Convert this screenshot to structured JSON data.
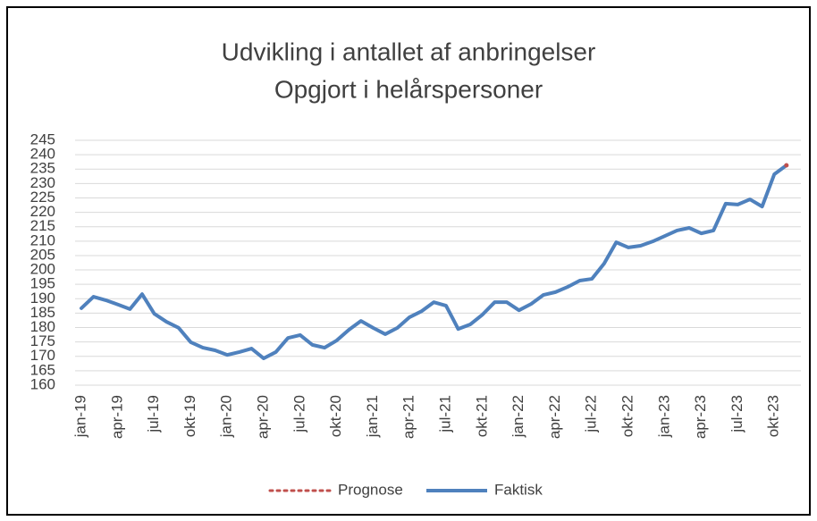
{
  "chart_data": {
    "type": "line",
    "title": "Udvikling i antallet af anbringelser",
    "subtitle": "Opgjort i helårspersoner",
    "categories": [
      "jan-19",
      null,
      null,
      "apr-19",
      null,
      null,
      "jul-19",
      null,
      null,
      "okt-19",
      null,
      null,
      "jan-20",
      null,
      null,
      "apr-20",
      null,
      null,
      "jul-20",
      null,
      null,
      "okt-20",
      null,
      null,
      "jan-21",
      null,
      null,
      "apr-21",
      null,
      null,
      "jul-21",
      null,
      null,
      "okt-21",
      null,
      null,
      "jan-22",
      null,
      null,
      "apr-22",
      null,
      null,
      "jul-22",
      null,
      null,
      "okt-22",
      null,
      null,
      "jan-23",
      null,
      null,
      "apr-23",
      null,
      null,
      "jul-23",
      null,
      null,
      "okt-23",
      null
    ],
    "series": [
      {
        "name": "Prognose",
        "color": "#c0504d",
        "style": "dotted",
        "values": [
          null,
          null,
          null,
          null,
          null,
          null,
          null,
          null,
          null,
          null,
          null,
          null,
          null,
          null,
          null,
          null,
          null,
          null,
          null,
          null,
          null,
          null,
          null,
          null,
          null,
          null,
          null,
          null,
          null,
          null,
          null,
          null,
          null,
          null,
          null,
          null,
          null,
          null,
          null,
          null,
          null,
          null,
          null,
          null,
          null,
          null,
          null,
          null,
          null,
          null,
          null,
          null,
          null,
          null,
          null,
          null,
          null,
          null,
          236.3
        ]
      },
      {
        "name": "Faktisk",
        "color": "#4f81bd",
        "style": "solid",
        "values": [
          186.7,
          190.7,
          189.5,
          188,
          186.4,
          191.6,
          184.8,
          182,
          179.9,
          174.9,
          173,
          172.1,
          170.5,
          171.5,
          172.7,
          169.3,
          171.5,
          176.4,
          177.4,
          174,
          173,
          175.5,
          179.2,
          182.3,
          179.9,
          177.7,
          179.9,
          183.6,
          185.7,
          188.8,
          187.6,
          179.5,
          181.1,
          184.5,
          188.8,
          188.8,
          186,
          188.2,
          191.3,
          192.3,
          194.1,
          196.3,
          196.9,
          202.2,
          209.6,
          207.8,
          208.4,
          209.9,
          211.8,
          213.7,
          214.6,
          212.7,
          213.7,
          223,
          222.7,
          224.5,
          222,
          233.2,
          236.3
        ]
      }
    ],
    "ylim": [
      160,
      245
    ],
    "yticks": [
      160,
      165,
      170,
      175,
      180,
      185,
      190,
      195,
      200,
      205,
      210,
      215,
      220,
      225,
      230,
      235,
      240,
      245
    ],
    "grid": true,
    "legend": "bottom"
  }
}
